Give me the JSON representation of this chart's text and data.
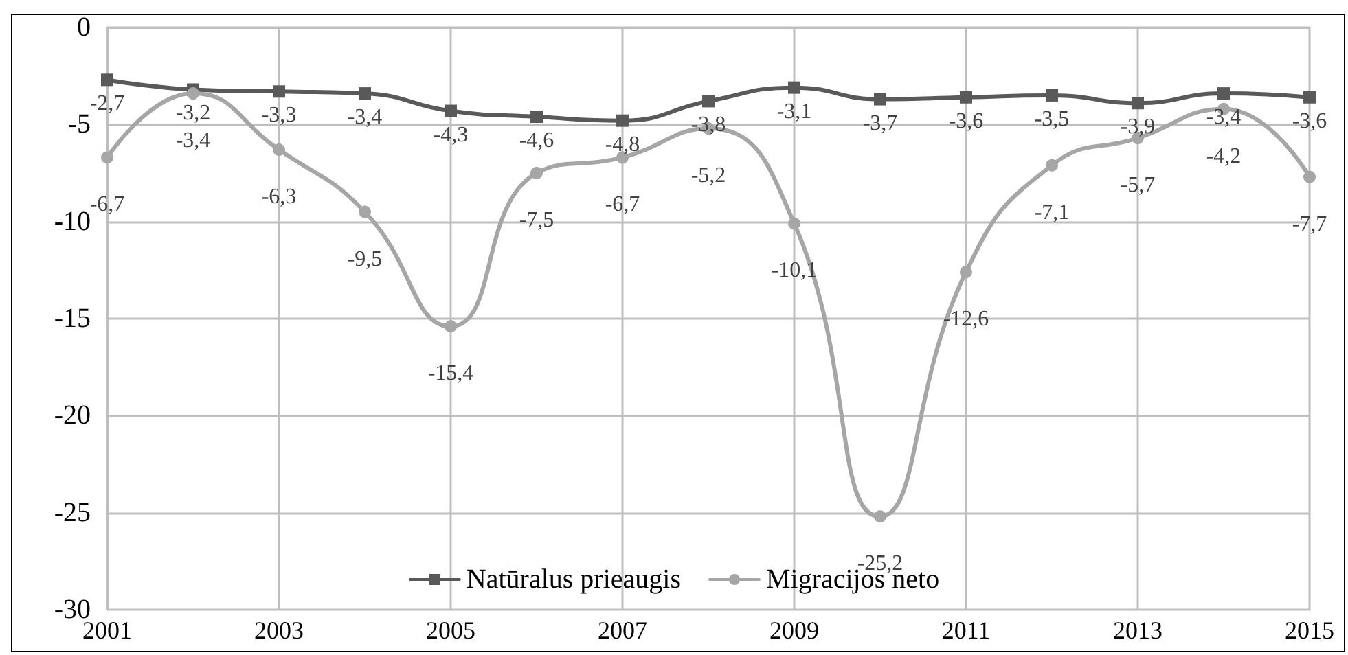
{
  "chart_data": {
    "type": "line",
    "x": [
      2001,
      2002,
      2003,
      2004,
      2005,
      2006,
      2007,
      2008,
      2009,
      2010,
      2011,
      2012,
      2013,
      2014,
      2015
    ],
    "series": [
      {
        "name": "Natūralus prieaugis",
        "color": "#595959",
        "marker": "square",
        "values": [
          -2.7,
          -3.2,
          -3.3,
          -3.4,
          -4.3,
          -4.6,
          -4.8,
          -3.8,
          -3.1,
          -3.7,
          -3.6,
          -3.5,
          -3.9,
          -3.4,
          -3.6
        ],
        "value_labels": [
          "-2,7",
          "-3,2",
          "-3,3",
          "-3,4",
          "-4,3",
          "-4,6",
          "-4,8",
          "-3,8",
          "-3,1",
          "-3,7",
          "-3,6",
          "-3,5",
          "-3,9",
          "-3,4",
          "-3,6"
        ]
      },
      {
        "name": "Migracijos neto",
        "color": "#a6a6a6",
        "marker": "circle",
        "values": [
          -6.7,
          -3.4,
          -6.3,
          -9.5,
          -15.4,
          -7.5,
          -6.7,
          -5.2,
          -10.1,
          -25.2,
          -12.6,
          -7.1,
          -5.7,
          -4.2,
          -7.7
        ],
        "value_labels": [
          "-6,7",
          "-3,4",
          "-6,3",
          "-9,5",
          "-15,4",
          "-7,5",
          "-6,7",
          "-5,2",
          "-10,1",
          "-25,2",
          "-12,6",
          "-7,1",
          "-5,7",
          "-4,2",
          "-7,7"
        ]
      }
    ],
    "xlim": [
      2001,
      2015
    ],
    "xticks": [
      2001,
      2003,
      2005,
      2007,
      2009,
      2011,
      2013,
      2015
    ],
    "ylim": [
      -30,
      0
    ],
    "yticks": [
      -30,
      -25,
      -20,
      -15,
      -10,
      -5,
      0
    ],
    "grid": true,
    "legend": "bottom",
    "line_style": "solid"
  }
}
